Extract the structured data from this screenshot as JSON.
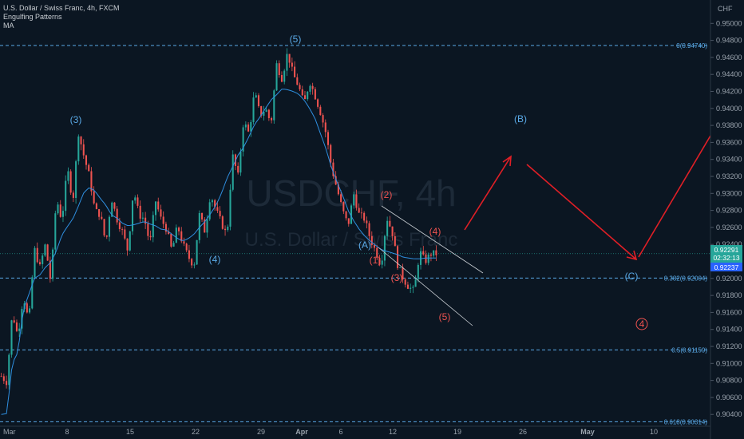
{
  "header": {
    "title": "U.S. Dollar / Swiss Franc, 4h, FXCM",
    "indicator1": "Engulfing Patterns",
    "indicator2": "MA"
  },
  "watermark": {
    "symbol": "USDCHF, 4h",
    "name": "U.S. Dollar / Swiss Franc"
  },
  "colors": {
    "background": "#0b1622",
    "bull": "#26a69a",
    "bear": "#ef5350",
    "ma": "#2f8fe0",
    "fib": "#5aa9e6",
    "arrows": "#e01f26",
    "current_tag": "#26a69a",
    "ma_tag": "#2962ff"
  },
  "chart_data": {
    "type": "candlestick",
    "symbol": "USDCHF",
    "timeframe": "4h",
    "ylim": [
      0.9028,
      0.952
    ],
    "currency_label": "CHF",
    "y_ticks": [
      "0.95000",
      "0.94800",
      "0.94600",
      "0.94400",
      "0.94200",
      "0.94000",
      "0.93800",
      "0.93600",
      "0.93400",
      "0.93200",
      "0.93000",
      "0.92800",
      "0.92600",
      "0.92400",
      "0.92200",
      "0.92000",
      "0.91800",
      "0.91600",
      "0.91400",
      "0.91200",
      "0.91000",
      "0.90800",
      "0.90600",
      "0.90400"
    ],
    "x_ticks": [
      "Mar",
      "8",
      "15",
      "22",
      "29",
      "Apr",
      "6",
      "12",
      "19",
      "26",
      "May",
      "10"
    ],
    "current_price": "0.92291",
    "countdown": "02:32:13",
    "ma_value": "0.92237",
    "price_path": [
      [
        0.9085,
        0.9078
      ],
      [
        0.916,
        0.9132
      ],
      [
        0.918,
        0.9148
      ],
      [
        0.9235,
        0.9213
      ],
      [
        0.924,
        0.9195
      ],
      [
        0.9295,
        0.9268
      ],
      [
        0.933,
        0.929
      ],
      [
        0.9372,
        0.9344
      ],
      [
        0.932,
        0.928
      ],
      [
        0.9275,
        0.924
      ],
      [
        0.9295,
        0.927
      ],
      [
        0.9255,
        0.9232
      ],
      [
        0.9305,
        0.9275
      ],
      [
        0.927,
        0.924
      ],
      [
        0.9292,
        0.927
      ],
      [
        0.9258,
        0.9232
      ],
      [
        0.9262,
        0.924
      ],
      [
        0.9225,
        0.9215
      ],
      [
        0.9275,
        0.9255
      ],
      [
        0.93,
        0.928
      ],
      [
        0.9265,
        0.925
      ],
      [
        0.9345,
        0.932
      ],
      [
        0.9385,
        0.937
      ],
      [
        0.942,
        0.9392
      ],
      [
        0.94,
        0.9382
      ],
      [
        0.9452,
        0.9435
      ],
      [
        0.9466,
        0.944
      ],
      [
        0.9426,
        0.9405
      ],
      [
        0.9432,
        0.9415
      ],
      [
        0.9395,
        0.937
      ],
      [
        0.933,
        0.9305
      ],
      [
        0.928,
        0.9262
      ],
      [
        0.93,
        0.9275
      ],
      [
        0.927,
        0.9247
      ],
      [
        0.9232,
        0.9215
      ],
      [
        0.9272,
        0.9255
      ],
      [
        0.9216,
        0.92
      ],
      [
        0.919,
        0.9185
      ],
      [
        0.9232,
        0.922
      ],
      [
        0.9229,
        0.9229
      ]
    ],
    "moving_average": [
      [
        0.904,
        0.9041
      ],
      [
        0.91,
        0.9113
      ],
      [
        0.9163,
        0.9181
      ],
      [
        0.92,
        0.9204
      ],
      [
        0.9213,
        0.9219
      ],
      [
        0.9232,
        0.9251
      ],
      [
        0.9261,
        0.927
      ],
      [
        0.9285,
        0.9301
      ],
      [
        0.9307,
        0.9303
      ],
      [
        0.9294,
        0.9286
      ],
      [
        0.9275,
        0.9271
      ],
      [
        0.9265,
        0.9262
      ],
      [
        0.9263,
        0.9265
      ],
      [
        0.9267,
        0.9264
      ],
      [
        0.9262,
        0.9258
      ],
      [
        0.9257,
        0.9252
      ],
      [
        0.9247,
        0.9244
      ],
      [
        0.9247,
        0.9252
      ],
      [
        0.926,
        0.9267
      ],
      [
        0.9276,
        0.9286
      ],
      [
        0.93,
        0.9318
      ],
      [
        0.9331,
        0.9345
      ],
      [
        0.9354,
        0.9367
      ],
      [
        0.9381,
        0.939
      ],
      [
        0.94,
        0.941
      ],
      [
        0.9416,
        0.9423
      ],
      [
        0.9422,
        0.942
      ],
      [
        0.9417,
        0.941
      ],
      [
        0.94,
        0.9388
      ],
      [
        0.937,
        0.9352
      ],
      [
        0.933,
        0.9313
      ],
      [
        0.9298,
        0.928
      ],
      [
        0.9268,
        0.9258
      ],
      [
        0.925,
        0.9244
      ],
      [
        0.9239,
        0.9234
      ],
      [
        0.9232,
        0.923
      ],
      [
        0.9228,
        0.9225
      ],
      [
        0.9224,
        0.9223
      ],
      [
        0.9223,
        0.9224
      ],
      [
        0.9224,
        0.9224
      ]
    ],
    "fib_levels": [
      {
        "label": "0(0.94740)",
        "value": 0.9474
      },
      {
        "label": "0.382(0.92004)",
        "value": 0.92004
      },
      {
        "label": "0.5(0.91159)",
        "value": 0.91159
      },
      {
        "label": "0.618(0.90314)",
        "value": 0.90314
      }
    ],
    "wave_labels": [
      {
        "text": "(3)",
        "color": "#5aa9e6"
      },
      {
        "text": "(4)",
        "color": "#5aa9e6"
      },
      {
        "text": "(5)",
        "color": "#5aa9e6"
      },
      {
        "text": "(A)",
        "color": "#5aa9e6"
      },
      {
        "text": "(1)",
        "color": "#ef5350"
      },
      {
        "text": "(2)",
        "color": "#ef5350"
      },
      {
        "text": "(3)",
        "color": "#ef5350"
      },
      {
        "text": "(4)",
        "color": "#ef5350"
      },
      {
        "text": "(5)",
        "color": "#ef5350"
      },
      {
        "text": "(B)",
        "color": "#5aa9e6"
      },
      {
        "text": "(C)",
        "color": "#5aa9e6"
      },
      {
        "text": "4",
        "color": "#ef5350",
        "circled": true
      }
    ]
  }
}
